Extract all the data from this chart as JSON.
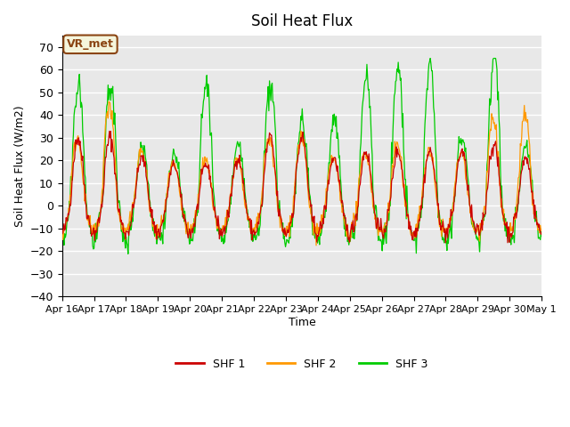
{
  "title": "Soil Heat Flux",
  "ylabel": "Soil Heat Flux (W/m2)",
  "xlabel": "Time",
  "ylim": [
    -40,
    75
  ],
  "yticks": [
    -40,
    -30,
    -20,
    -10,
    0,
    10,
    20,
    30,
    40,
    50,
    60,
    70
  ],
  "fig_bg_color": "#ffffff",
  "plot_bg_color": "#e8e8e8",
  "grid_color": "#ffffff",
  "shf1_color": "#cc0000",
  "shf2_color": "#ff9900",
  "shf3_color": "#00cc00",
  "legend_label1": "SHF 1",
  "legend_label2": "SHF 2",
  "legend_label3": "SHF 3",
  "watermark_text": "VR_met",
  "watermark_color": "#8b4513",
  "watermark_bg": "#f5f5dc",
  "xtick_labels": [
    "Apr 16",
    "Apr 17",
    "Apr 18",
    "Apr 19",
    "Apr 20",
    "Apr 21",
    "Apr 22",
    "Apr 23",
    "Apr 24",
    "Apr 25",
    "Apr 26",
    "Apr 27",
    "Apr 28",
    "Apr 29",
    "Apr 30",
    "May 1"
  ],
  "n_days": 15,
  "points_per_day": 48
}
